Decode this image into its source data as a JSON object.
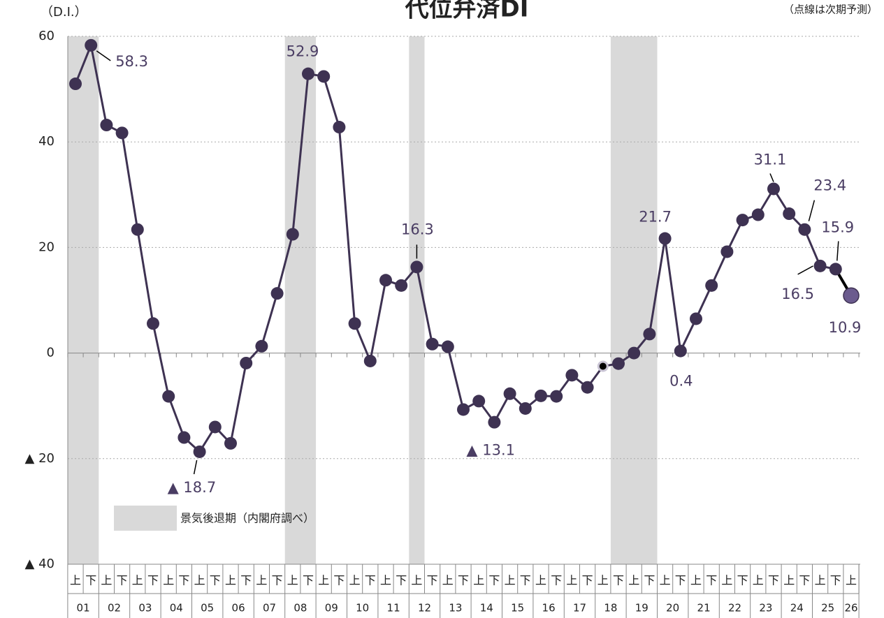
{
  "chart_data": {
    "type": "line",
    "title": "代位弁済DI",
    "y_unit": "（D.I.）",
    "note": "（点線は次期予測）",
    "legend_label": "景気後退期（内閣府調べ）",
    "categories": [
      "上",
      "下",
      "上",
      "下",
      "上",
      "下",
      "上",
      "下",
      "上",
      "下",
      "上",
      "下",
      "上",
      "下",
      "上",
      "下",
      "上",
      "下",
      "上",
      "下",
      "上",
      "下",
      "上",
      "下",
      "上",
      "下",
      "上",
      "下",
      "上",
      "下",
      "上",
      "下",
      "上",
      "下",
      "上",
      "下",
      "上",
      "下",
      "上",
      "下",
      "上",
      "下",
      "上",
      "下",
      "上",
      "下",
      "上",
      "下",
      "上",
      "下",
      "上"
    ],
    "years": [
      "01",
      "02",
      "03",
      "04",
      "05",
      "06",
      "07",
      "08",
      "09",
      "10",
      "11",
      "12",
      "13",
      "14",
      "15",
      "16",
      "17",
      "18",
      "19",
      "20",
      "21",
      "22",
      "23",
      "24",
      "25",
      "26"
    ],
    "values": [
      51.0,
      58.3,
      43.2,
      41.7,
      23.4,
      5.6,
      -8.2,
      -16.0,
      -18.7,
      -14.0,
      -17.1,
      -1.9,
      1.3,
      11.3,
      22.5,
      52.9,
      52.4,
      42.8,
      5.6,
      -1.5,
      13.8,
      12.8,
      16.3,
      1.7,
      1.2,
      -10.7,
      -9.1,
      -13.1,
      -7.7,
      -10.5,
      -8.1,
      -8.2,
      -4.2,
      -6.5,
      -2.5,
      -2.0,
      0,
      3.6,
      21.7,
      0.4,
      6.5,
      12.8,
      19.2,
      25.2,
      26.2,
      31.1,
      26.4,
      23.4,
      16.5,
      15.9,
      10.9
    ],
    "value_labels": [
      null,
      "58.3",
      null,
      null,
      null,
      null,
      null,
      null,
      "▲ 18.7",
      null,
      null,
      null,
      null,
      null,
      null,
      "52.9",
      null,
      null,
      null,
      null,
      null,
      null,
      "16.3",
      null,
      null,
      null,
      null,
      "▲ 13.1",
      null,
      null,
      null,
      null,
      null,
      null,
      null,
      null,
      null,
      null,
      "21.7",
      "0.4",
      null,
      null,
      null,
      null,
      null,
      "31.1",
      null,
      "23.4",
      "16.5",
      "15.9",
      "10.9"
    ],
    "color": "#3e3252",
    "forecast_color": "#6b5b8e",
    "band_color": "#d9d9d9",
    "recession_bands": [
      [
        0,
        1
      ],
      [
        14,
        15
      ],
      [
        22,
        22
      ],
      [
        35,
        37
      ]
    ],
    "ylim": [
      -40,
      60
    ],
    "yticks": [
      {
        "value": -40,
        "label": "▲ 40"
      },
      {
        "value": -20,
        "label": "▲ 20"
      },
      0,
      20,
      40,
      60
    ],
    "grid": true
  }
}
